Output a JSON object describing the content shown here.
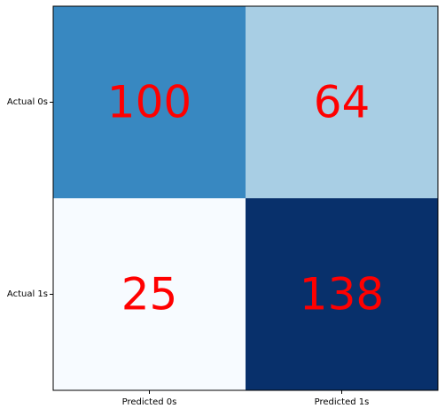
{
  "chart_data": {
    "type": "heatmap",
    "title": "",
    "xlabel": "",
    "ylabel": "",
    "x_categories": [
      "Predicted 0s",
      "Predicted 1s"
    ],
    "y_categories": [
      "Actual 0s",
      "Actual 1s"
    ],
    "values": [
      [
        100,
        64
      ],
      [
        25,
        138
      ]
    ],
    "colormap": "Blues",
    "value_range": [
      25,
      138
    ],
    "annotation_color": "#ff0000",
    "grid": false,
    "colorbar": false
  }
}
